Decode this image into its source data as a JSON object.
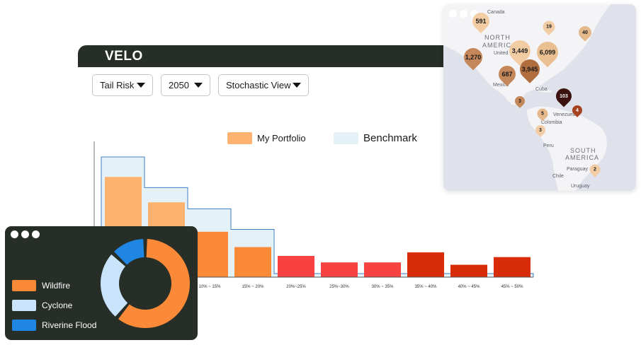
{
  "app": {
    "title": "VELO"
  },
  "filters": {
    "risk": {
      "value": "Tail Risk"
    },
    "year": {
      "value": "2050"
    },
    "view": {
      "value": "Stochastic View"
    }
  },
  "legend": {
    "portfolio": {
      "label": "My Portfolio",
      "color": "#fdb36f"
    },
    "benchmark": {
      "label": "Benchmark",
      "color": "#e4f2f8"
    }
  },
  "chart_data": {
    "type": "bar",
    "categories": [
      "",
      "",
      "10% ~ 15%",
      "15% ~ 20%",
      "20%~25%",
      "25%~30%",
      "30% ~ 35%",
      "35% ~ 40%",
      "40% ~ 45%",
      "45% ~ 50%"
    ],
    "series": [
      {
        "name": "My Portfolio",
        "values": [
          170,
          127,
          77,
          51,
          36,
          25,
          25,
          42,
          21,
          34
        ]
      },
      {
        "name": "Benchmark",
        "values": [
          204,
          152,
          116,
          81,
          6,
          6,
          6,
          6,
          6,
          6
        ]
      }
    ],
    "bar_colors": [
      "#fdb36f",
      "#fdb36f",
      "#fa8a38",
      "#fa8a38",
      "#f84141",
      "#f84141",
      "#f84141",
      "#d92d0a",
      "#d92d0a",
      "#d92d0a"
    ],
    "ylim": [
      0,
      210
    ],
    "grid": false,
    "legend_position": "top-right"
  },
  "map": {
    "labels": {
      "canada": "Canada",
      "north1": "NORTH",
      "north2": "AMERICA",
      "united": "United",
      "mexico": "Mexico",
      "cuba": "Cuba",
      "venezuela": "Venezuela",
      "colombia": "Colombia",
      "peru": "Peru",
      "south1": "SOUTH",
      "south2": "AMERICA",
      "chile": "Chile",
      "paraguay": "Paraguay",
      "uruguay": "Uruguay"
    },
    "pins": [
      {
        "value": "591",
        "color": "#f2cda4"
      },
      {
        "value": "19",
        "color": "#f2cda4"
      },
      {
        "value": "40",
        "color": "#e4b98c"
      },
      {
        "value": "1,270",
        "color": "#c4875a"
      },
      {
        "value": "3,449",
        "color": "#f2cda4"
      },
      {
        "value": "6,099",
        "color": "#eabf91"
      },
      {
        "value": "687",
        "color": "#c4875a"
      },
      {
        "value": "3,945",
        "color": "#b06d3e"
      },
      {
        "value": "103",
        "color": "#3b1210"
      },
      {
        "value": "3",
        "color": "#c4875a"
      },
      {
        "value": "5",
        "color": "#e4b98c"
      },
      {
        "value": "4",
        "color": "#a5421f"
      },
      {
        "value": "3",
        "color": "#f2cda4"
      },
      {
        "value": "2",
        "color": "#f2cda4"
      }
    ]
  },
  "hazards": {
    "items": [
      {
        "label": "Wildfire",
        "color": "#fa8a38",
        "share": 0.61
      },
      {
        "label": "Cyclone",
        "color": "#c9e3fa",
        "share": 0.26
      },
      {
        "label": "Riverine Flood",
        "color": "#1f86e4",
        "share": 0.13
      }
    ]
  }
}
